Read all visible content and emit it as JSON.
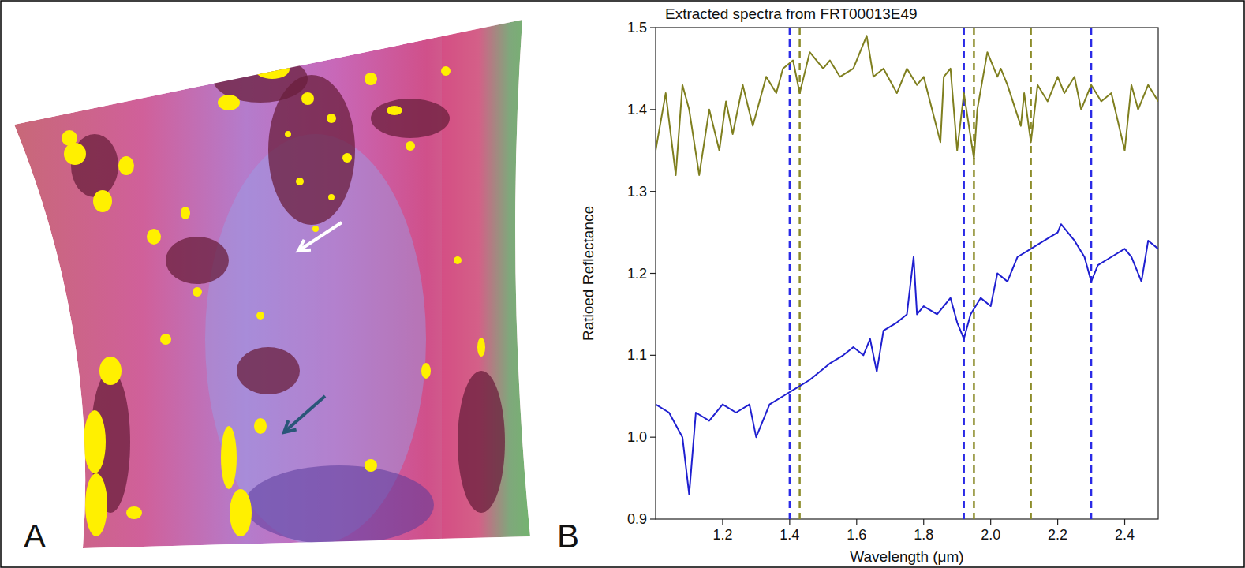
{
  "figure": {
    "panel_labels": [
      "A",
      "B"
    ]
  },
  "chart_data": {
    "type": "line",
    "title": "Extracted spectra from FRT00013E49",
    "x_label": "Wavelength (μm)",
    "y_label": "Ratioed Reflectance",
    "xlim": [
      1.0,
      2.5
    ],
    "xticks": [
      {
        "value": 1.2,
        "label": "1.2"
      },
      {
        "value": 1.4,
        "label": "1.4"
      },
      {
        "value": 1.6,
        "label": "1.6"
      },
      {
        "value": 1.8,
        "label": "1.8"
      },
      {
        "value": 2.0,
        "label": "2.0"
      },
      {
        "value": 2.2,
        "label": "2.2"
      },
      {
        "value": 2.4,
        "label": "2.4"
      }
    ],
    "ylim": [
      0.9,
      1.5
    ],
    "yticks": [
      {
        "value": 0.9,
        "label": "0.9"
      },
      {
        "value": 1.0,
        "label": "1.0"
      },
      {
        "value": 1.1,
        "label": "1.1"
      },
      {
        "value": 1.2,
        "label": "1.2"
      },
      {
        "value": 1.3,
        "label": "1.3"
      },
      {
        "value": 1.4,
        "label": "1.4"
      },
      {
        "value": 1.5,
        "label": "1.5"
      }
    ],
    "grid": false,
    "series": [
      {
        "color": "#7f7f1f",
        "x": [
          1.0,
          1.03,
          1.06,
          1.08,
          1.1,
          1.13,
          1.16,
          1.19,
          1.21,
          1.23,
          1.26,
          1.29,
          1.33,
          1.36,
          1.38,
          1.41,
          1.43,
          1.46,
          1.5,
          1.52,
          1.55,
          1.59,
          1.63,
          1.65,
          1.68,
          1.72,
          1.75,
          1.78,
          1.8,
          1.85,
          1.86,
          1.88,
          1.9,
          1.92,
          1.95,
          1.96,
          1.99,
          2.02,
          2.03,
          2.05,
          2.09,
          2.1,
          2.12,
          2.14,
          2.17,
          2.2,
          2.22,
          2.25,
          2.27,
          2.3,
          2.33,
          2.36,
          2.4,
          2.42,
          2.44,
          2.47,
          2.5
        ],
        "values": [
          1.35,
          1.42,
          1.32,
          1.43,
          1.4,
          1.32,
          1.4,
          1.35,
          1.41,
          1.37,
          1.43,
          1.38,
          1.44,
          1.42,
          1.45,
          1.46,
          1.42,
          1.47,
          1.45,
          1.46,
          1.44,
          1.45,
          1.49,
          1.44,
          1.45,
          1.42,
          1.45,
          1.43,
          1.44,
          1.36,
          1.44,
          1.45,
          1.35,
          1.42,
          1.34,
          1.4,
          1.47,
          1.44,
          1.45,
          1.43,
          1.38,
          1.42,
          1.36,
          1.43,
          1.41,
          1.44,
          1.42,
          1.44,
          1.4,
          1.43,
          1.41,
          1.42,
          1.35,
          1.43,
          1.4,
          1.43,
          1.41
        ]
      },
      {
        "color": "#1f1fd0",
        "x": [
          1.0,
          1.04,
          1.08,
          1.1,
          1.12,
          1.16,
          1.2,
          1.24,
          1.28,
          1.3,
          1.34,
          1.38,
          1.42,
          1.46,
          1.52,
          1.56,
          1.59,
          1.62,
          1.64,
          1.66,
          1.68,
          1.72,
          1.75,
          1.77,
          1.78,
          1.8,
          1.84,
          1.88,
          1.9,
          1.92,
          1.94,
          1.97,
          2.0,
          2.02,
          2.05,
          2.08,
          2.12,
          2.16,
          2.2,
          2.21,
          2.25,
          2.28,
          2.3,
          2.32,
          2.36,
          2.4,
          2.42,
          2.45,
          2.47,
          2.5
        ],
        "values": [
          1.04,
          1.03,
          1.0,
          0.93,
          1.03,
          1.02,
          1.04,
          1.03,
          1.04,
          1.0,
          1.04,
          1.05,
          1.06,
          1.07,
          1.09,
          1.1,
          1.11,
          1.1,
          1.12,
          1.08,
          1.13,
          1.14,
          1.15,
          1.22,
          1.15,
          1.16,
          1.15,
          1.17,
          1.14,
          1.12,
          1.15,
          1.17,
          1.16,
          1.2,
          1.19,
          1.22,
          1.23,
          1.24,
          1.25,
          1.26,
          1.24,
          1.22,
          1.19,
          1.21,
          1.22,
          1.23,
          1.22,
          1.19,
          1.24,
          1.23
        ]
      }
    ],
    "reference_lines": [
      {
        "x": 1.4,
        "color": "#2a2ae6",
        "line_style": "dashed"
      },
      {
        "x": 1.92,
        "color": "#2a2ae6",
        "line_style": "dashed"
      },
      {
        "x": 2.3,
        "color": "#2a2ae6",
        "line_style": "dashed"
      },
      {
        "x": 1.43,
        "color": "#8c8c2a",
        "line_style": "dashed"
      },
      {
        "x": 1.95,
        "color": "#8c8c2a",
        "line_style": "dashed"
      },
      {
        "x": 2.12,
        "color": "#8c8c2a",
        "line_style": "dashed"
      }
    ]
  }
}
